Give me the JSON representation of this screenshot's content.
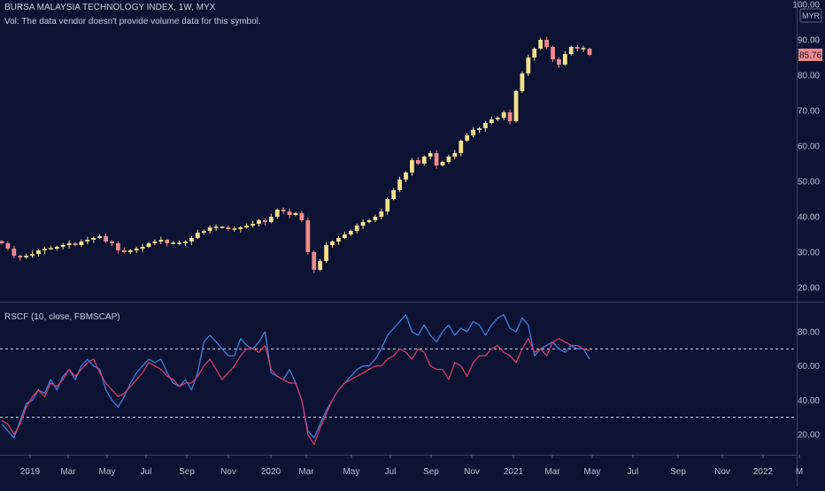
{
  "header": {
    "symbol_line": "BURSA MALAYSIA TECHNOLOGY INDEX, 1W, MYX",
    "volume_note": "Vol: The data vendor doesn't provide volume data for this symbol."
  },
  "colors": {
    "background": "#0b1232",
    "up_candle": "#f5e08a",
    "down_candle": "#ef8a8a",
    "rsc_line_a": "#3f7fe0",
    "rsc_line_b": "#d83a64",
    "dotted_level": "#d8dbe6",
    "axis_text": "#b9bfcf",
    "last_price_badge": "#ef8a8a"
  },
  "chart_data": [
    {
      "type": "candlestick",
      "title": "BURSA MALAYSIA TECHNOLOGY INDEX, 1W, MYX",
      "currency_label": "MYR",
      "last_price": "85.76",
      "y_ticks": [
        "100.00",
        "90.00",
        "80.00",
        "70.00",
        "60.00",
        "50.00",
        "40.00",
        "30.00",
        "20.00"
      ],
      "ylim": [
        17,
        100
      ],
      "x_ticks": [
        "2019",
        "Mar",
        "May",
        "Jul",
        "Sep",
        "Nov",
        "2020",
        "Mar",
        "May",
        "Jul",
        "Sep",
        "Nov",
        "2021",
        "Mar",
        "May",
        "Jul",
        "Sep",
        "Nov",
        "2022",
        "M"
      ],
      "close": [
        32.5,
        31.0,
        29.0,
        28.5,
        29.0,
        29.5,
        30.5,
        31.0,
        31.0,
        31.5,
        32.0,
        32.5,
        32.0,
        33.0,
        33.5,
        34.0,
        34.5,
        33.0,
        32.5,
        30.5,
        30.0,
        30.5,
        31.0,
        31.5,
        32.5,
        33.0,
        33.5,
        32.5,
        32.5,
        32.5,
        33.0,
        34.0,
        35.5,
        36.0,
        37.0,
        37.0,
        37.0,
        36.5,
        36.5,
        37.0,
        37.5,
        38.0,
        39.0,
        38.5,
        40.0,
        42.0,
        41.5,
        40.5,
        41.0,
        39.0,
        30.0,
        25.0,
        27.5,
        32.0,
        33.0,
        34.0,
        35.0,
        36.0,
        37.5,
        38.5,
        39.0,
        40.0,
        41.5,
        45.0,
        47.5,
        50.5,
        52.5,
        56.0,
        55.0,
        57.0,
        58.0,
        54.5,
        55.5,
        57.0,
        58.0,
        61.5,
        63.0,
        64.5,
        65.0,
        66.5,
        67.5,
        68.0,
        69.5,
        67.0,
        75.5,
        80.5,
        85.0,
        87.5,
        90.0,
        88.0,
        84.5,
        83.0,
        86.0,
        88.0,
        87.5,
        87.5,
        85.76
      ]
    },
    {
      "type": "line",
      "title": "RSCF (10, close, FBMSCAP)",
      "y_ticks": [
        "80.00",
        "60.00",
        "40.00",
        "20.00"
      ],
      "ylim": [
        7,
        95
      ],
      "reference_levels": [
        70,
        30
      ],
      "series": [
        {
          "values": [
            26,
            22,
            18,
            28,
            38,
            40,
            46,
            44,
            52,
            46,
            54,
            58,
            52,
            60,
            64,
            60,
            58,
            46,
            40,
            36,
            42,
            50,
            56,
            60,
            64,
            62,
            64,
            56,
            50,
            48,
            52,
            46,
            56,
            74,
            78,
            74,
            70,
            66,
            66,
            76,
            72,
            70,
            74,
            80,
            56,
            54,
            52,
            58,
            50,
            40,
            22,
            18,
            26,
            34,
            40,
            46,
            50,
            54,
            58,
            60,
            60,
            64,
            70,
            78,
            82,
            86,
            90,
            80,
            78,
            84,
            78,
            74,
            80,
            84,
            78,
            82,
            80,
            86,
            84,
            78,
            84,
            88,
            90,
            82,
            80,
            88,
            84,
            66,
            70,
            72,
            74,
            70,
            68,
            72,
            70,
            70,
            64
          ]
        },
        {
          "values": [
            28,
            26,
            20,
            26,
            36,
            42,
            46,
            42,
            50,
            48,
            52,
            58,
            54,
            58,
            62,
            64,
            56,
            50,
            46,
            42,
            44,
            48,
            52,
            56,
            62,
            60,
            58,
            54,
            52,
            48,
            50,
            50,
            54,
            60,
            64,
            58,
            52,
            56,
            60,
            66,
            70,
            70,
            68,
            72,
            58,
            54,
            52,
            50,
            50,
            40,
            20,
            14,
            24,
            32,
            40,
            46,
            50,
            52,
            54,
            56,
            58,
            60,
            60,
            64,
            66,
            70,
            68,
            64,
            70,
            68,
            60,
            58,
            58,
            52,
            62,
            60,
            54,
            62,
            66,
            66,
            70,
            72,
            68,
            66,
            62,
            70,
            76,
            68,
            70,
            66,
            74,
            76,
            74,
            72,
            72,
            70,
            69
          ]
        }
      ]
    }
  ]
}
